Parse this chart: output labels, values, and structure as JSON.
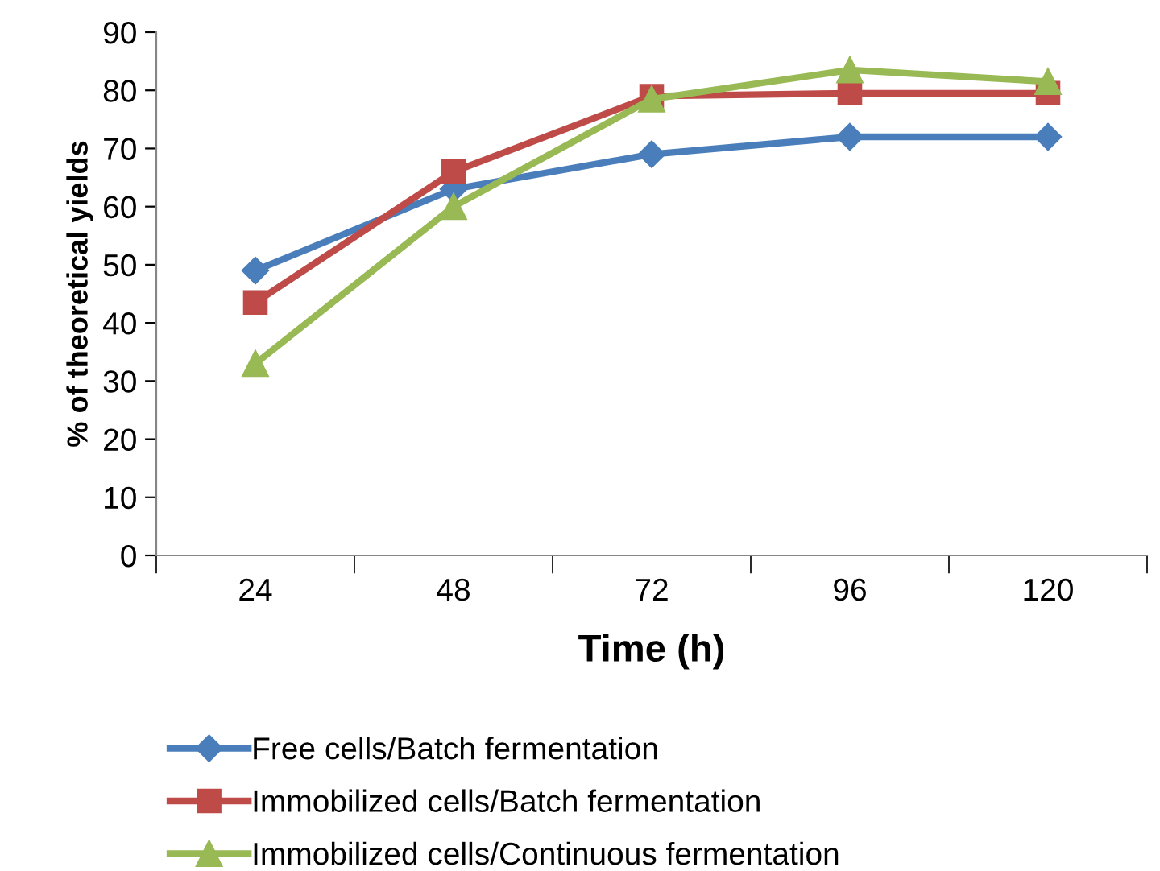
{
  "chart_data": {
    "type": "line",
    "xlabel": "Time (h)",
    "ylabel": "% of theoretical yields",
    "categories": [
      "24",
      "48",
      "72",
      "96",
      "120"
    ],
    "series": [
      {
        "name": "Free cells/Batch fermentation",
        "color": "#4a7ebb",
        "marker": "diamond",
        "values": [
          49,
          63,
          69,
          72,
          72
        ]
      },
      {
        "name": "Immobilized cells/Batch fermentation",
        "color": "#be4b48",
        "marker": "square",
        "values": [
          43.5,
          66,
          79,
          79.5,
          79.5
        ]
      },
      {
        "name": "Immobilized cells/Continuous fermentation",
        "color": "#98b954",
        "marker": "triangle",
        "values": [
          33,
          60,
          78.5,
          83.5,
          81.5
        ]
      }
    ],
    "ylim": [
      0,
      90
    ],
    "yticks": [
      0,
      10,
      20,
      30,
      40,
      50,
      60,
      70,
      80,
      90
    ],
    "grid": false,
    "legend": "bottom"
  }
}
